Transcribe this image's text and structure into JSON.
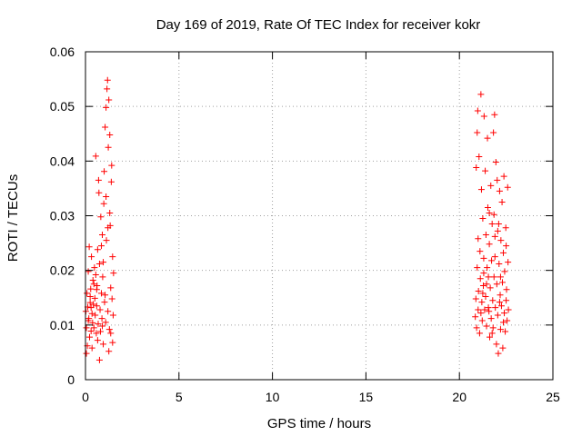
{
  "chart_data": {
    "type": "scatter",
    "title": "Day 169 of 2019, Rate Of TEC Index for receiver kokr",
    "xlabel": "GPS time / hours",
    "ylabel": "ROTI / TECUs",
    "xlim": [
      0,
      25
    ],
    "ylim": [
      0,
      0.06
    ],
    "xticks": [
      0,
      5,
      10,
      15,
      20,
      25
    ],
    "xtick_labels": [
      "0",
      "5",
      "10",
      "15",
      "20",
      "25"
    ],
    "yticks": [
      0,
      0.01,
      0.02,
      0.03,
      0.04,
      0.05,
      0.06
    ],
    "ytick_labels": [
      "0",
      "0.01",
      "0.02",
      "0.03",
      "0.04",
      "0.05",
      "0.06"
    ],
    "grid": true,
    "marker": "+",
    "color": "#ff0000",
    "series": [
      {
        "name": "ROTI",
        "points": [
          [
            0.02,
            0.0125
          ],
          [
            0.05,
            0.0095
          ],
          [
            0.08,
            0.0158
          ],
          [
            0.1,
            0.0062
          ],
          [
            0.12,
            0.0133
          ],
          [
            0.15,
            0.0198
          ],
          [
            0.18,
            0.0112
          ],
          [
            0.2,
            0.0243
          ],
          [
            0.22,
            0.0078
          ],
          [
            0.25,
            0.0141
          ],
          [
            0.28,
            0.0166
          ],
          [
            0.3,
            0.0089
          ],
          [
            0.32,
            0.0225
          ],
          [
            0.35,
            0.0121
          ],
          [
            0.38,
            0.0104
          ],
          [
            0.4,
            0.0182
          ],
          [
            0.42,
            0.0138
          ],
          [
            0.45,
            0.0095
          ],
          [
            0.48,
            0.0205
          ],
          [
            0.5,
            0.0149
          ],
          [
            0.52,
            0.0118
          ],
          [
            0.55,
            0.0409
          ],
          [
            0.58,
            0.0085
          ],
          [
            0.6,
            0.0135
          ],
          [
            0.62,
            0.0172
          ],
          [
            0.65,
            0.0238
          ],
          [
            0.68,
            0.0102
          ],
          [
            0.7,
            0.0365
          ],
          [
            0.72,
            0.0342
          ],
          [
            0.75,
            0.0036
          ],
          [
            0.78,
            0.0128
          ],
          [
            0.8,
            0.0088
          ],
          [
            0.82,
            0.0298
          ],
          [
            0.85,
            0.0158
          ],
          [
            0.88,
            0.0112
          ],
          [
            0.9,
            0.0265
          ],
          [
            0.92,
            0.0188
          ],
          [
            0.95,
            0.0215
          ],
          [
            0.98,
            0.0322
          ],
          [
            1.0,
            0.0381
          ],
          [
            1.02,
            0.0142
          ],
          [
            1.05,
            0.0462
          ],
          [
            1.08,
            0.0105
          ],
          [
            1.1,
            0.0498
          ],
          [
            1.12,
            0.0255
          ],
          [
            1.15,
            0.0532
          ],
          [
            1.18,
            0.0548
          ],
          [
            1.2,
            0.0125
          ],
          [
            1.22,
            0.0425
          ],
          [
            1.25,
            0.0512
          ],
          [
            1.28,
            0.0092
          ],
          [
            1.3,
            0.0448
          ],
          [
            1.32,
            0.0282
          ],
          [
            1.35,
            0.0168
          ],
          [
            1.38,
            0.0362
          ],
          [
            1.4,
            0.0392
          ],
          [
            1.42,
            0.0148
          ],
          [
            1.45,
            0.0225
          ],
          [
            1.48,
            0.0118
          ],
          [
            1.5,
            0.0195
          ],
          [
            0.3,
            0.0132
          ],
          [
            0.6,
            0.0165
          ],
          [
            0.9,
            0.0098
          ],
          [
            1.2,
            0.0278
          ],
          [
            0.15,
            0.0108
          ],
          [
            0.45,
            0.0175
          ],
          [
            0.75,
            0.0212
          ],
          [
            1.05,
            0.0155
          ],
          [
            1.35,
            0.0085
          ],
          [
            0.05,
            0.0048
          ],
          [
            0.35,
            0.0058
          ],
          [
            0.65,
            0.0072
          ],
          [
            0.95,
            0.0065
          ],
          [
            1.25,
            0.0052
          ],
          [
            1.45,
            0.0068
          ],
          [
            0.85,
            0.0245
          ],
          [
            1.1,
            0.0335
          ],
          [
            1.3,
            0.0305
          ],
          [
            0.55,
            0.0192
          ],
          [
            0.25,
            0.0152
          ],
          [
            20.85,
            0.0115
          ],
          [
            20.88,
            0.0148
          ],
          [
            20.9,
            0.0388
          ],
          [
            20.92,
            0.0095
          ],
          [
            20.95,
            0.0452
          ],
          [
            20.98,
            0.0492
          ],
          [
            21.0,
            0.0128
          ],
          [
            21.02,
            0.0162
          ],
          [
            21.05,
            0.0408
          ],
          [
            21.08,
            0.0085
          ],
          [
            21.1,
            0.0235
          ],
          [
            21.12,
            0.0185
          ],
          [
            21.15,
            0.0522
          ],
          [
            21.18,
            0.0348
          ],
          [
            21.2,
            0.0142
          ],
          [
            21.22,
            0.0108
          ],
          [
            21.25,
            0.0295
          ],
          [
            21.28,
            0.0172
          ],
          [
            21.3,
            0.0222
          ],
          [
            21.32,
            0.0482
          ],
          [
            21.35,
            0.0128
          ],
          [
            21.38,
            0.0382
          ],
          [
            21.4,
            0.0152
          ],
          [
            21.42,
            0.0265
          ],
          [
            21.45,
            0.0098
          ],
          [
            21.48,
            0.0205
          ],
          [
            21.5,
            0.0442
          ],
          [
            21.52,
            0.0315
          ],
          [
            21.55,
            0.0188
          ],
          [
            21.58,
            0.0125
          ],
          [
            21.6,
            0.0248
          ],
          [
            21.62,
            0.0078
          ],
          [
            21.65,
            0.0168
          ],
          [
            21.68,
            0.0355
          ],
          [
            21.7,
            0.0112
          ],
          [
            21.72,
            0.0218
          ],
          [
            21.75,
            0.0285
          ],
          [
            21.78,
            0.0145
          ],
          [
            21.8,
            0.0095
          ],
          [
            21.82,
            0.0452
          ],
          [
            21.85,
            0.0188
          ],
          [
            21.88,
            0.0485
          ],
          [
            21.9,
            0.0262
          ],
          [
            21.92,
            0.0132
          ],
          [
            21.95,
            0.0398
          ],
          [
            21.98,
            0.0065
          ],
          [
            22.0,
            0.0175
          ],
          [
            22.02,
            0.0365
          ],
          [
            22.05,
            0.0118
          ],
          [
            22.08,
            0.0048
          ],
          [
            22.1,
            0.0285
          ],
          [
            22.12,
            0.0212
          ],
          [
            22.15,
            0.0345
          ],
          [
            22.18,
            0.0155
          ],
          [
            22.2,
            0.0092
          ],
          [
            22.22,
            0.0255
          ],
          [
            22.25,
            0.0135
          ],
          [
            22.28,
            0.0325
          ],
          [
            22.3,
            0.0178
          ],
          [
            22.32,
            0.0058
          ],
          [
            22.35,
            0.0232
          ],
          [
            22.38,
            0.0372
          ],
          [
            22.4,
            0.0122
          ],
          [
            22.42,
            0.0198
          ],
          [
            22.45,
            0.0088
          ],
          [
            22.48,
            0.0278
          ],
          [
            22.5,
            0.0145
          ],
          [
            22.52,
            0.0165
          ],
          [
            22.55,
            0.0108
          ],
          [
            22.58,
            0.0352
          ],
          [
            22.6,
            0.0215
          ],
          [
            22.62,
            0.0128
          ],
          [
            21.0,
            0.0258
          ],
          [
            21.3,
            0.0195
          ],
          [
            21.6,
            0.0305
          ],
          [
            21.9,
            0.0225
          ],
          [
            22.2,
            0.0188
          ],
          [
            22.5,
            0.0245
          ],
          [
            21.15,
            0.0122
          ],
          [
            21.45,
            0.0175
          ],
          [
            21.75,
            0.0085
          ],
          [
            22.05,
            0.0272
          ],
          [
            22.35,
            0.0105
          ],
          [
            20.95,
            0.0205
          ],
          [
            21.25,
            0.0158
          ],
          [
            21.55,
            0.0132
          ],
          [
            21.85,
            0.0302
          ],
          [
            22.15,
            0.0142
          ]
        ]
      }
    ]
  }
}
